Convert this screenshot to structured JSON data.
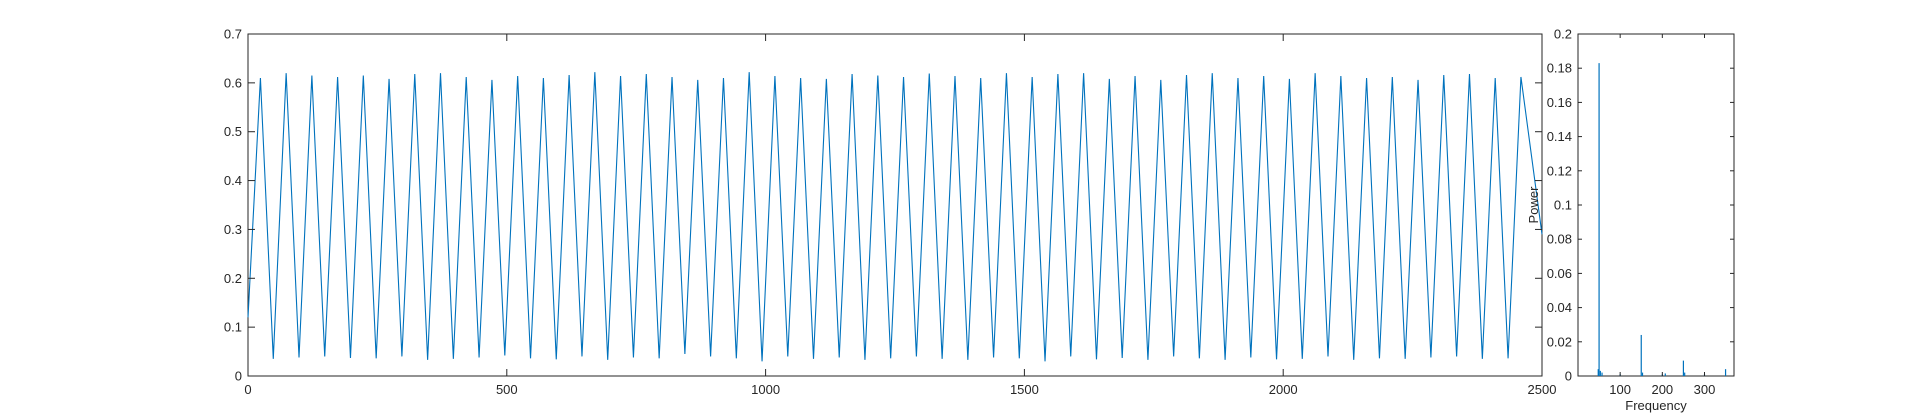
{
  "chart_data": [
    {
      "type": "line",
      "title": "",
      "xlabel": "",
      "ylabel": "",
      "xlim": [
        0,
        2500
      ],
      "ylim": [
        0,
        0.7
      ],
      "xticks": [
        0,
        500,
        1000,
        1500,
        2000,
        2500
      ],
      "yticks": [
        0,
        0.1,
        0.2,
        0.3,
        0.4,
        0.5,
        0.6,
        0.7
      ],
      "grid": false,
      "legend": "none",
      "series_color": "#0072BD",
      "waveform": {
        "shape": "triangle",
        "start": [
          0,
          0.12
        ],
        "first_peak": [
          24,
          0.61
        ],
        "period": 49.7,
        "peak_values": [
          0.61,
          0.62,
          0.615,
          0.612,
          0.615,
          0.608,
          0.618,
          0.62,
          0.612,
          0.606,
          0.614,
          0.61,
          0.616,
          0.622,
          0.614,
          0.618,
          0.612,
          0.606,
          0.61,
          0.622,
          0.614,
          0.61,
          0.608,
          0.618,
          0.615,
          0.612,
          0.619,
          0.614,
          0.61,
          0.62,
          0.612,
          0.618,
          0.62,
          0.608,
          0.614,
          0.606,
          0.616,
          0.62,
          0.61,
          0.614,
          0.608,
          0.62,
          0.614,
          0.61,
          0.612,
          0.606,
          0.616,
          0.618,
          0.61,
          0.612
        ],
        "trough_values": [
          0.035,
          0.038,
          0.04,
          0.037,
          0.036,
          0.04,
          0.033,
          0.035,
          0.038,
          0.042,
          0.036,
          0.034,
          0.04,
          0.033,
          0.038,
          0.036,
          0.045,
          0.04,
          0.036,
          0.03,
          0.04,
          0.035,
          0.038,
          0.033,
          0.036,
          0.04,
          0.035,
          0.033,
          0.038,
          0.036,
          0.03,
          0.04,
          0.034,
          0.037,
          0.033,
          0.04,
          0.036,
          0.033,
          0.038,
          0.034,
          0.035,
          0.04,
          0.033,
          0.036,
          0.035,
          0.038,
          0.04,
          0.035,
          0.036
        ],
        "end": [
          2500,
          0.29
        ]
      }
    },
    {
      "type": "bar",
      "title": "",
      "xlabel": "Frequency",
      "ylabel": "Power",
      "xlim": [
        0,
        370
      ],
      "ylim": [
        0,
        0.2
      ],
      "xticks": [
        100,
        200,
        300
      ],
      "yticks": [
        0,
        0.02,
        0.04,
        0.06,
        0.08,
        0.1,
        0.12,
        0.14,
        0.16,
        0.18,
        0.2
      ],
      "grid": false,
      "legend": "none",
      "series_color": "#0072BD",
      "stems": [
        {
          "x": 50,
          "y": 0.183
        },
        {
          "x": 48,
          "y": 0.004
        },
        {
          "x": 53,
          "y": 0.003
        },
        {
          "x": 57,
          "y": 0.002
        },
        {
          "x": 100,
          "y": 0.001
        },
        {
          "x": 150,
          "y": 0.024
        },
        {
          "x": 153,
          "y": 0.002
        },
        {
          "x": 200,
          "y": 0.001
        },
        {
          "x": 207,
          "y": 0.0015
        },
        {
          "x": 250,
          "y": 0.009
        },
        {
          "x": 253,
          "y": 0.002
        },
        {
          "x": 300,
          "y": 0.001
        },
        {
          "x": 350,
          "y": 0.004
        }
      ]
    }
  ]
}
